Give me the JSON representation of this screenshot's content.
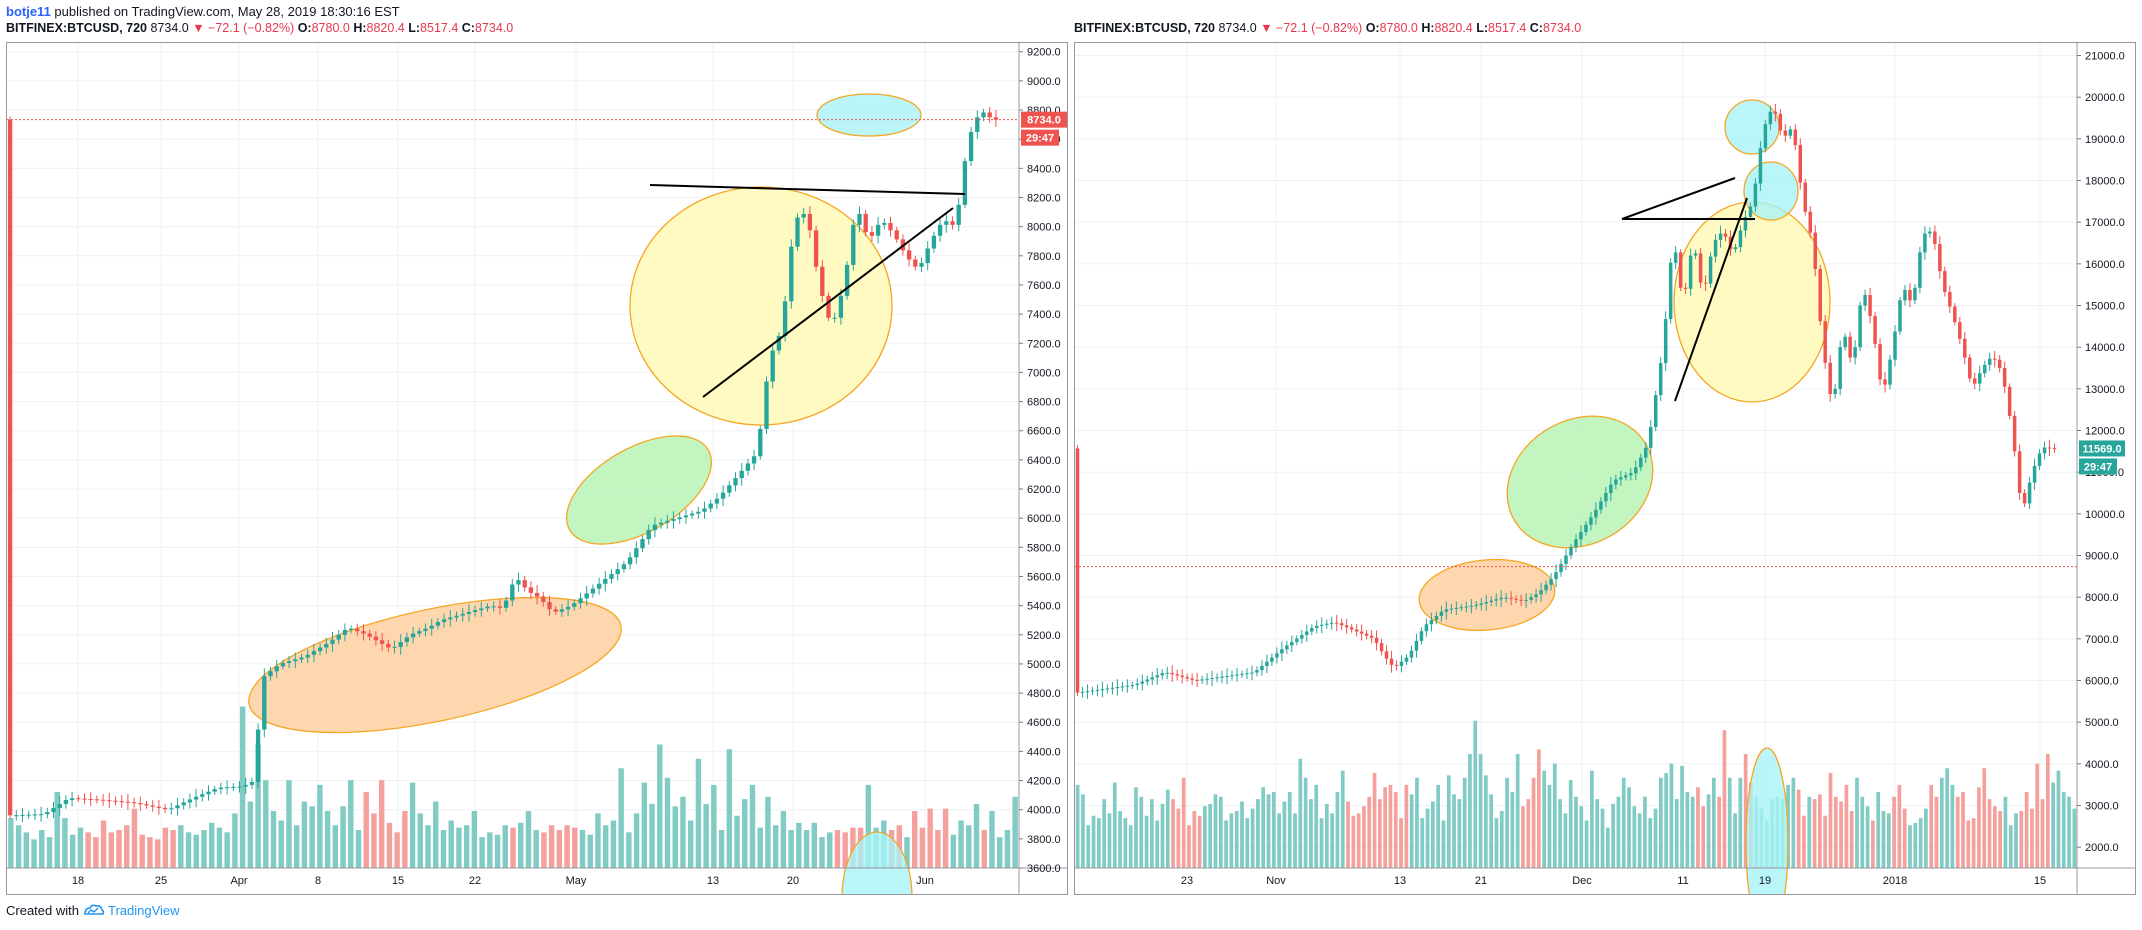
{
  "header": {
    "author": "botje11",
    "published": "published on TradingView.com, May 28, 2019 18:30:16 EST"
  },
  "legend": {
    "symbol": "BITFINEX:BTCUSD, 720",
    "price": "8734.0",
    "change": "▼ −72.1 (−0.82%)",
    "o_label": "O:",
    "o_value": "8780.0",
    "h_label": "H:",
    "h_value": "8820.4",
    "l_label": "L:",
    "l_value": "8517.4",
    "c_label": "C:",
    "c_value": "8734.0"
  },
  "footer": {
    "created_with": "Created with",
    "brand": "TradingView"
  },
  "colors": {
    "up": "#26a69a",
    "down": "#ef5350",
    "up_vol": "#80cbc4",
    "down_vol": "#f4a09d",
    "orange_fill": "#ffcc99",
    "green_fill": "#b2f2b0",
    "yellow_fill": "#fff9b0",
    "cyan_fill": "#a6f3f7"
  },
  "chart_data": [
    {
      "type": "candlestick",
      "x_ticks": [
        "18",
        "25",
        "Apr",
        "8",
        "15",
        "22",
        "May",
        "13",
        "20",
        "Jun"
      ],
      "y_ticks": [
        3600,
        3800,
        4000,
        4200,
        4400,
        4600,
        4800,
        5000,
        5200,
        5400,
        5600,
        5800,
        6000,
        6200,
        6400,
        6600,
        6800,
        7000,
        7200,
        7400,
        7600,
        7800,
        8000,
        8200,
        8400,
        8600,
        8800,
        9000,
        9200
      ],
      "ylim": [
        3600,
        9260
      ],
      "last_price": "8734.0",
      "countdown": "29:47",
      "price_path": [
        [
          0,
          3960
        ],
        [
          6,
          3970
        ],
        [
          10,
          4080
        ],
        [
          14,
          4070
        ],
        [
          20,
          4050
        ],
        [
          26,
          4000
        ],
        [
          30,
          4080
        ],
        [
          34,
          4150
        ],
        [
          38,
          4160
        ],
        [
          40,
          4200
        ],
        [
          41,
          4900
        ],
        [
          44,
          5000
        ],
        [
          48,
          5050
        ],
        [
          52,
          5150
        ],
        [
          55,
          5250
        ],
        [
          58,
          5200
        ],
        [
          62,
          5100
        ],
        [
          65,
          5200
        ],
        [
          68,
          5250
        ],
        [
          70,
          5300
        ],
        [
          74,
          5350
        ],
        [
          78,
          5400
        ],
        [
          80,
          5380
        ],
        [
          82,
          5600
        ],
        [
          84,
          5500
        ],
        [
          86,
          5450
        ],
        [
          88,
          5350
        ],
        [
          91,
          5400
        ],
        [
          94,
          5500
        ],
        [
          97,
          5600
        ],
        [
          100,
          5700
        ],
        [
          104,
          5950
        ],
        [
          108,
          6000
        ],
        [
          112,
          6050
        ],
        [
          115,
          6150
        ],
        [
          118,
          6300
        ],
        [
          121,
          6450
        ],
        [
          123,
          7100
        ],
        [
          125,
          7300
        ],
        [
          127,
          8050
        ],
        [
          129,
          8100
        ],
        [
          131,
          7600
        ],
        [
          133,
          7300
        ],
        [
          135,
          7600
        ],
        [
          137,
          8150
        ],
        [
          139,
          7900
        ],
        [
          141,
          8050
        ],
        [
          143,
          7950
        ],
        [
          145,
          7800
        ],
        [
          147,
          7700
        ],
        [
          149,
          7900
        ],
        [
          151,
          8050
        ],
        [
          153,
          8000
        ],
        [
          155,
          8600
        ],
        [
          157,
          8800
        ],
        [
          159,
          8734
        ]
      ],
      "volumes": [
        210,
        180,
        150,
        120,
        160,
        130,
        320,
        210,
        140,
        170,
        150,
        130,
        200,
        150,
        160,
        180,
        250,
        140,
        130,
        120,
        170,
        160,
        180,
        150,
        140,
        160,
        190,
        170,
        150,
        230,
        680,
        280,
        520,
        370,
        240,
        200,
        370,
        180,
        280,
        260,
        350,
        240,
        180,
        260,
        370,
        160,
        320,
        230,
        370,
        190,
        150,
        240,
        360,
        230,
        180,
        280,
        160,
        200,
        170,
        180,
        240,
        130,
        150,
        140,
        180,
        170,
        190,
        240,
        160,
        150,
        180,
        160,
        180,
        170,
        160,
        140,
        230,
        180,
        200,
        420,
        150,
        230,
        360,
        270,
        520,
        380,
        260,
        300,
        200,
        460,
        270,
        350,
        160,
        500,
        220,
        290,
        350,
        170,
        300,
        180,
        240,
        160,
        190,
        160,
        190,
        130,
        150,
        160,
        150,
        170,
        170,
        350,
        170,
        200,
        160,
        180,
        130,
        240,
        170,
        250,
        160,
        250,
        140,
        200,
        180,
        270,
        160,
        240,
        130,
        160,
        300
      ],
      "annotations": [
        "orange-ellipse",
        "green-ellipse",
        "yellow-ellipse",
        "cyan-ellipse",
        "resistance-line",
        "support-line",
        "cyan-volume-ellipse"
      ]
    },
    {
      "type": "candlestick",
      "x_ticks": [
        "23",
        "Nov",
        "13",
        "21",
        "Dec",
        "11",
        "19",
        "2018",
        "15"
      ],
      "y_ticks": [
        2000,
        3000,
        4000,
        5000,
        6000,
        7000,
        8000,
        9000,
        10000,
        11000,
        12000,
        13000,
        14000,
        15000,
        16000,
        17000,
        18000,
        19000,
        20000,
        21000
      ],
      "ylim": [
        1500,
        21300
      ],
      "last_price": "11569.0",
      "countdown": "29:47",
      "ref_price": 8734,
      "price_path": [
        [
          0,
          5700
        ],
        [
          6,
          5800
        ],
        [
          12,
          5900
        ],
        [
          18,
          6200
        ],
        [
          24,
          6000
        ],
        [
          30,
          6100
        ],
        [
          36,
          6200
        ],
        [
          42,
          6800
        ],
        [
          48,
          7300
        ],
        [
          52,
          7400
        ],
        [
          56,
          7200
        ],
        [
          60,
          7000
        ],
        [
          62,
          6600
        ],
        [
          64,
          6300
        ],
        [
          67,
          6600
        ],
        [
          70,
          7300
        ],
        [
          74,
          7700
        ],
        [
          80,
          7800
        ],
        [
          86,
          8000
        ],
        [
          90,
          7900
        ],
        [
          93,
          8100
        ],
        [
          96,
          8500
        ],
        [
          100,
          9300
        ],
        [
          104,
          10000
        ],
        [
          108,
          10800
        ],
        [
          112,
          11000
        ],
        [
          115,
          11700
        ],
        [
          118,
          14000
        ],
        [
          120,
          16700
        ],
        [
          122,
          15000
        ],
        [
          124,
          16600
        ],
        [
          126,
          15200
        ],
        [
          128,
          16500
        ],
        [
          130,
          16800
        ],
        [
          132,
          16200
        ],
        [
          134,
          17000
        ],
        [
          136,
          17500
        ],
        [
          138,
          19200
        ],
        [
          140,
          19800
        ],
        [
          142,
          19000
        ],
        [
          144,
          19300
        ],
        [
          146,
          17500
        ],
        [
          148,
          16500
        ],
        [
          150,
          14000
        ],
        [
          152,
          12500
        ],
        [
          154,
          14500
        ],
        [
          156,
          13500
        ],
        [
          158,
          15500
        ],
        [
          160,
          14500
        ],
        [
          162,
          12800
        ],
        [
          164,
          14000
        ],
        [
          166,
          15500
        ],
        [
          168,
          15000
        ],
        [
          170,
          16700
        ],
        [
          172,
          16800
        ],
        [
          174,
          15500
        ],
        [
          176,
          14800
        ],
        [
          178,
          14000
        ],
        [
          180,
          13000
        ],
        [
          182,
          13500
        ],
        [
          184,
          13800
        ],
        [
          186,
          13400
        ],
        [
          188,
          12000
        ],
        [
          190,
          10000
        ],
        [
          192,
          11000
        ],
        [
          194,
          11600
        ],
        [
          196,
          11569
        ]
      ],
      "volumes": [
        350,
        310,
        180,
        220,
        210,
        290,
        230,
        360,
        240,
        210,
        180,
        340,
        300,
        220,
        290,
        200,
        270,
        330,
        290,
        250,
        380,
        180,
        240,
        220,
        260,
        270,
        310,
        300,
        200,
        230,
        240,
        280,
        210,
        250,
        290,
        340,
        310,
        320,
        230,
        280,
        320,
        230,
        460,
        380,
        290,
        350,
        210,
        270,
        230,
        320,
        410,
        280,
        220,
        230,
        260,
        300,
        400,
        290,
        340,
        350,
        320,
        210,
        350,
        310,
        380,
        210,
        250,
        280,
        350,
        200,
        390,
        310,
        290,
        380,
        480,
        620,
        480,
        390,
        310,
        210,
        240,
        380,
        320,
        480,
        260,
        290,
        380,
        500,
        410,
        350,
        440,
        290,
        230,
        370,
        300,
        260,
        200,
        410,
        290,
        250,
        170,
        270,
        300,
        380,
        340,
        260,
        230,
        300,
        210,
        250,
        380,
        400,
        440,
        290,
        430,
        320,
        300,
        340,
        260,
        310,
        380,
        300,
        580,
        380,
        230,
        380,
        480,
        360,
        300,
        250,
        200,
        290,
        300,
        290,
        350,
        380,
        330,
        220,
        300,
        290,
        310,
        220,
        400,
        300,
        280,
        350,
        240,
        380,
        300,
        260,
        200,
        320,
        240,
        230,
        300,
        350,
        250,
        180,
        190,
        210,
        250,
        350,
        300,
        380,
        420,
        350,
        300,
        320,
        200,
        210,
        340,
        420,
        290,
        260,
        240,
        300,
        180,
        230,
        240,
        320,
        250,
        440,
        290,
        480,
        360,
        410,
        320,
        300,
        250
      ],
      "annotations": [
        "orange-ellipse",
        "green-ellipse",
        "yellow-ellipse",
        "small-cyan-ellipse",
        "cyan-ellipse",
        "resistance-line",
        "support-line",
        "cyan-volume-ellipse"
      ]
    }
  ]
}
